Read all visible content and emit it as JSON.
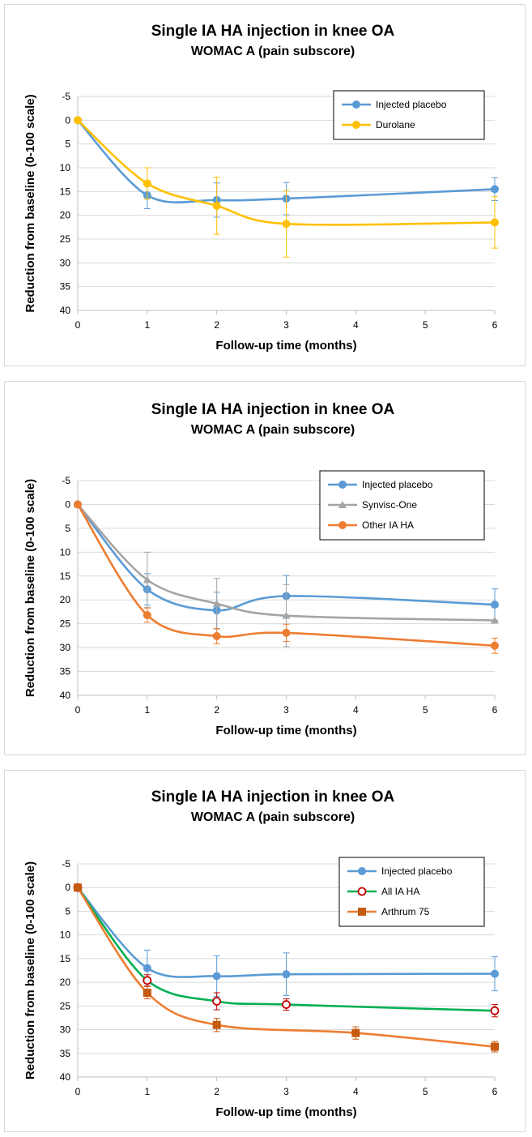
{
  "chart_data": [
    {
      "type": "line",
      "title": "Single IA HA injection in knee OA",
      "subtitle": "WOMAC A (pain subscore)",
      "xlabel": "Follow-up time (months)",
      "ylabel": "Reduction from baseline (0-100 scale)",
      "xlim": [
        0,
        6
      ],
      "ylim": [
        -5,
        40
      ],
      "y_inverted": true,
      "x_ticks": [
        0,
        1,
        2,
        3,
        4,
        5,
        6
      ],
      "y_ticks": [
        -5,
        0,
        5,
        10,
        15,
        20,
        25,
        30,
        35,
        40
      ],
      "grid": "horizontal",
      "legend": "top-right",
      "series": [
        {
          "name": "Injected placebo",
          "color": "#5b9bd5",
          "marker": "circle",
          "x": [
            0,
            1,
            2,
            3,
            6
          ],
          "y": [
            0,
            15.8,
            16.8,
            16.5,
            14.5
          ],
          "err": [
            0,
            2.8,
            3.6,
            3.4,
            2.4
          ]
        },
        {
          "name": "Durolane",
          "color": "#ffc000",
          "marker": "circle",
          "x": [
            0,
            1,
            2,
            3,
            6
          ],
          "y": [
            0,
            13.3,
            18.0,
            21.8,
            21.5
          ],
          "err": [
            0,
            3.3,
            6.0,
            7.0,
            5.4
          ]
        }
      ]
    },
    {
      "type": "line",
      "title": "Single IA HA injection in knee OA",
      "subtitle": "WOMAC A (pain subscore)",
      "xlabel": "Follow-up time (months)",
      "ylabel": "Reduction from baseline (0-100 scale)",
      "xlim": [
        0,
        6
      ],
      "ylim": [
        -5,
        40
      ],
      "y_inverted": true,
      "x_ticks": [
        0,
        1,
        2,
        3,
        4,
        5,
        6
      ],
      "y_ticks": [
        -5,
        0,
        5,
        10,
        15,
        20,
        25,
        30,
        35,
        40
      ],
      "grid": "horizontal",
      "legend": "top-right",
      "series": [
        {
          "name": "Injected placebo",
          "color": "#5b9bd5",
          "marker": "circle",
          "x": [
            0,
            1,
            2,
            3,
            6
          ],
          "y": [
            0,
            17.8,
            22.2,
            19.2,
            21.0
          ],
          "err": [
            0,
            3.3,
            3.8,
            4.3,
            3.3
          ]
        },
        {
          "name": "Synvisc-One",
          "color": "#a5a5a5",
          "marker": "triangle",
          "x": [
            0,
            1,
            2,
            3,
            6
          ],
          "y": [
            0,
            15.8,
            20.8,
            23.3,
            24.3
          ],
          "err": [
            0,
            5.8,
            5.3,
            6.5,
            0
          ]
        },
        {
          "name": "Other IA HA",
          "color": "#ed7d31",
          "marker": "circle",
          "x": [
            0,
            1,
            2,
            3,
            6
          ],
          "y": [
            0,
            23.2,
            27.6,
            26.9,
            29.6
          ],
          "err": [
            0,
            1.5,
            1.6,
            1.8,
            1.6
          ]
        }
      ]
    },
    {
      "type": "line",
      "title": "Single IA HA injection in knee OA",
      "subtitle": "WOMAC A (pain subscore)",
      "xlabel": "Follow-up time (months)",
      "ylabel": "Reduction from baseline (0-100 scale)",
      "xlim": [
        0,
        6
      ],
      "ylim": [
        -5,
        40
      ],
      "y_inverted": true,
      "x_ticks": [
        0,
        1,
        2,
        3,
        4,
        5,
        6
      ],
      "y_ticks": [
        -5,
        0,
        5,
        10,
        15,
        20,
        25,
        30,
        35,
        40
      ],
      "grid": "horizontal",
      "legend": "top-right",
      "series": [
        {
          "name": "Injected placebo",
          "color": "#5b9bd5",
          "marker": "circle",
          "x": [
            0,
            1,
            2,
            3,
            6
          ],
          "y": [
            0,
            17.0,
            18.7,
            18.3,
            18.2
          ],
          "err": [
            0,
            3.8,
            4.3,
            4.5,
            3.6
          ]
        },
        {
          "name": "All IA HA",
          "color": "#00b050",
          "marker": "open-circle",
          "marker_color": "#c00000",
          "x": [
            0,
            1,
            2,
            3,
            6
          ],
          "y": [
            0,
            19.6,
            24.0,
            24.7,
            26.0
          ],
          "err": [
            0,
            1.2,
            1.8,
            1.2,
            1.3
          ]
        },
        {
          "name": "Arthrum 75",
          "color": "#ed7d31",
          "marker": "square",
          "marker_color": "#c55a11",
          "x": [
            0,
            1,
            2,
            4,
            6
          ],
          "y": [
            0,
            22.2,
            29.0,
            30.7,
            33.6
          ],
          "err": [
            0,
            1.3,
            1.4,
            1.3,
            1.1
          ]
        }
      ]
    }
  ]
}
